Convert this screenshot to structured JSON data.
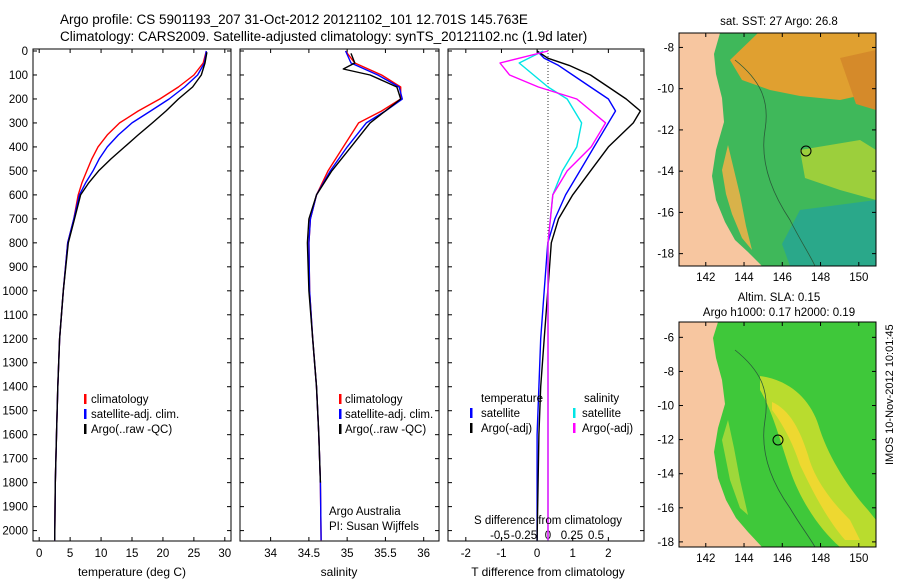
{
  "header": {
    "title1": "Argo profile: CS 5901193_207 31-Oct-2012 20121102_101 12.701S 145.763E",
    "title2": "Climatology: CARS2009. Satellite-adjusted climatology: synTS_20121102.nc (1.9d later)"
  },
  "colors": {
    "climatology": "#ff0000",
    "satellite": "#0000ff",
    "argo": "#000000",
    "sat_salinity": "#00e5e5",
    "argo_salinity": "#ff00ff",
    "land": "#f7c6a0"
  },
  "chart_data": [
    {
      "id": "temperature",
      "type": "line",
      "xlabel": "temperature (deg C)",
      "ylabel": "",
      "xlim": [
        -1,
        31
      ],
      "ylim": [
        2080,
        0
      ],
      "xticks": [
        "0",
        "5",
        "10",
        "15",
        "20",
        "25",
        "30"
      ],
      "xtick_values": [
        0,
        5,
        10,
        15,
        20,
        25,
        30
      ],
      "yticks": [
        "0",
        "100",
        "200",
        "300",
        "400",
        "500",
        "600",
        "700",
        "800",
        "900",
        "1000",
        "1100",
        "1200",
        "1300",
        "1400",
        "1500",
        "1600",
        "1700",
        "1800",
        "1900",
        "2000"
      ],
      "ytick_values": [
        0,
        100,
        200,
        300,
        400,
        500,
        600,
        700,
        800,
        900,
        1000,
        1100,
        1200,
        1300,
        1400,
        1500,
        1600,
        1700,
        1800,
        1900,
        2000
      ],
      "legend": [
        "climatology",
        "satellite-adj. clim.",
        "Argo(..raw -QC)"
      ],
      "series": [
        {
          "name": "climatology",
          "color": "#ff0000",
          "x": [
            27.0,
            26.5,
            25.0,
            22.5,
            19.5,
            16.0,
            13.0,
            11.0,
            9.5,
            8.5,
            7.7,
            6.9,
            6.3,
            5.6,
            4.6,
            3.9,
            3.3,
            3.0,
            2.8,
            2.6,
            2.5
          ],
          "y": [
            0,
            50,
            100,
            150,
            200,
            250,
            300,
            350,
            400,
            450,
            500,
            550,
            600,
            700,
            800,
            1000,
            1200,
            1400,
            1600,
            1800,
            2040
          ]
        },
        {
          "name": "satellite-adj. clim.",
          "color": "#0000ff",
          "x": [
            27.0,
            26.7,
            25.6,
            23.5,
            21.0,
            18.0,
            15.0,
            12.8,
            11.0,
            9.7,
            8.7,
            7.5,
            6.5,
            5.6,
            4.6,
            3.9,
            3.3,
            3.0,
            2.8,
            2.6,
            2.5
          ],
          "y": [
            0,
            50,
            100,
            150,
            200,
            250,
            300,
            350,
            400,
            450,
            500,
            550,
            600,
            700,
            800,
            1000,
            1200,
            1400,
            1600,
            1800,
            2040
          ]
        },
        {
          "name": "Argo(..raw -QC)",
          "color": "#000000",
          "x": [
            27.1,
            26.8,
            26.2,
            24.8,
            22.5,
            20.5,
            18.3,
            16.0,
            13.8,
            11.6,
            9.6,
            8.0,
            6.7,
            5.7,
            4.7,
            3.9,
            3.3,
            3.0,
            2.8,
            2.6,
            2.5
          ],
          "y": [
            5,
            50,
            100,
            150,
            200,
            250,
            300,
            350,
            400,
            450,
            500,
            550,
            600,
            700,
            800,
            1000,
            1200,
            1400,
            1600,
            1800,
            2040
          ]
        }
      ]
    },
    {
      "id": "salinity",
      "type": "line",
      "xlabel": "salinity",
      "xlim": [
        33.6,
        36.2
      ],
      "ylim": [
        2080,
        0
      ],
      "xticks": [
        "34",
        "34.5",
        "35",
        "35.5",
        "36"
      ],
      "xtick_values": [
        34,
        34.5,
        35,
        35.5,
        36
      ],
      "legend": [
        "climatology",
        "satellite-adj. clim.",
        "Argo(..raw -QC)"
      ],
      "annotation": [
        "Argo Australia",
        "PI: Susan Wijffels"
      ],
      "series": [
        {
          "name": "climatology",
          "color": "#ff0000",
          "x": [
            34.98,
            35.1,
            35.45,
            35.7,
            35.7,
            35.45,
            35.15,
            34.95,
            34.75,
            34.6,
            34.52,
            34.5,
            34.51,
            34.55,
            34.6,
            34.63,
            34.65,
            34.66
          ],
          "y": [
            0,
            50,
            100,
            150,
            200,
            250,
            300,
            400,
            500,
            600,
            700,
            800,
            1000,
            1200,
            1400,
            1600,
            1800,
            2040
          ]
        },
        {
          "name": "satellite-adj. clim.",
          "color": "#0000ff",
          "x": [
            34.98,
            35.05,
            35.4,
            35.68,
            35.72,
            35.5,
            35.25,
            35.0,
            34.78,
            34.6,
            34.52,
            34.5,
            34.51,
            34.55,
            34.6,
            34.63,
            34.65,
            34.66
          ],
          "y": [
            0,
            50,
            100,
            150,
            200,
            250,
            300,
            400,
            500,
            600,
            700,
            800,
            1000,
            1200,
            1400,
            1600,
            1800,
            2040
          ]
        },
        {
          "name": "Argo(..raw -QC)",
          "color": "#000000",
          "x": [
            35.05,
            35.1,
            34.95,
            35.3,
            35.65,
            35.7,
            35.5,
            35.3,
            35.05,
            34.8,
            34.6,
            34.5,
            34.48,
            34.5,
            34.55,
            34.6,
            34.63,
            34.65
          ],
          "y": [
            10,
            50,
            75,
            100,
            150,
            200,
            250,
            300,
            400,
            500,
            600,
            700,
            800,
            1000,
            1200,
            1400,
            1600,
            1800
          ]
        }
      ]
    },
    {
      "id": "differences",
      "type": "line",
      "xlabel": "T difference from climatology",
      "xlabel_top": "S difference from climatology",
      "xlim": [
        -2.5,
        3.0
      ],
      "ylim": [
        2080,
        0
      ],
      "xticks": [
        "-2",
        "-1",
        "0",
        "1",
        "2"
      ],
      "xtick_values": [
        -2,
        -1,
        0,
        1,
        2
      ],
      "sticks": [
        "-0.5",
        "-0.25",
        "0",
        "0.25",
        "0.5"
      ],
      "stick_values": [
        -0.5,
        -0.25,
        0,
        0.25,
        0.5
      ],
      "legend_temperature": [
        "temperature",
        "satellite",
        "Argo(-adj)"
      ],
      "legend_salinity": [
        "salinity",
        "satellite",
        "Argo(-adj)"
      ],
      "series": [
        {
          "name": "T satellite",
          "color": "#0000ff",
          "x": [
            0.0,
            0.2,
            0.6,
            1.0,
            1.5,
            2.0,
            2.2,
            2.0,
            1.6,
            1.2,
            0.8,
            0.5,
            0.3,
            0.2,
            0.1,
            0.05,
            0.0,
            0.0
          ],
          "y": [
            0,
            30,
            60,
            100,
            150,
            200,
            250,
            300,
            400,
            500,
            600,
            700,
            800,
            1000,
            1200,
            1400,
            1600,
            2040
          ]
        },
        {
          "name": "T Argo(-adj)",
          "color": "#000000",
          "x": [
            0.0,
            0.3,
            0.9,
            1.5,
            2.0,
            2.5,
            2.9,
            2.7,
            2.0,
            1.5,
            1.0,
            0.6,
            0.4,
            0.3,
            0.2,
            0.1,
            0.05,
            0.0
          ],
          "y": [
            0,
            30,
            60,
            100,
            150,
            200,
            250,
            300,
            400,
            500,
            600,
            700,
            800,
            1000,
            1200,
            1400,
            1600,
            2040
          ]
        },
        {
          "name": "S satellite",
          "color": "#00e5e5",
          "x": [
            -0.05,
            -0.3,
            -0.15,
            0.0,
            0.2,
            0.35,
            0.3,
            0.15,
            0.05,
            0.0,
            0.0,
            0.0
          ],
          "y": [
            0,
            50,
            100,
            150,
            200,
            300,
            400,
            500,
            600,
            800,
            1200,
            2040
          ]
        },
        {
          "name": "S Argo(-adj)",
          "color": "#ff00ff",
          "x": [
            0.0,
            -0.5,
            -0.4,
            -0.1,
            0.3,
            0.6,
            0.45,
            0.2,
            0.05,
            0.0,
            0.0
          ],
          "y": [
            0,
            50,
            100,
            150,
            200,
            300,
            400,
            500,
            600,
            800,
            2040
          ]
        }
      ]
    }
  ],
  "maps": {
    "top": {
      "title": "sat. SST: 27 Argo: 26.8",
      "yticks": [
        "-8",
        "-10",
        "-12",
        "-14",
        "-16",
        "-18"
      ],
      "xticks": [
        "142",
        "144",
        "146",
        "148",
        "150"
      ]
    },
    "bottom": {
      "title1": "Altim. SLA: 0.15",
      "title2": "Argo h1000: 0.17 h2000: 0.19",
      "yticks": [
        "-6",
        "-8",
        "-10",
        "-12",
        "-14",
        "-16",
        "-18"
      ],
      "xticks": [
        "142",
        "144",
        "146",
        "148",
        "150"
      ]
    }
  },
  "stamp": "IMOS 10-Nov-2012 10:01:45"
}
